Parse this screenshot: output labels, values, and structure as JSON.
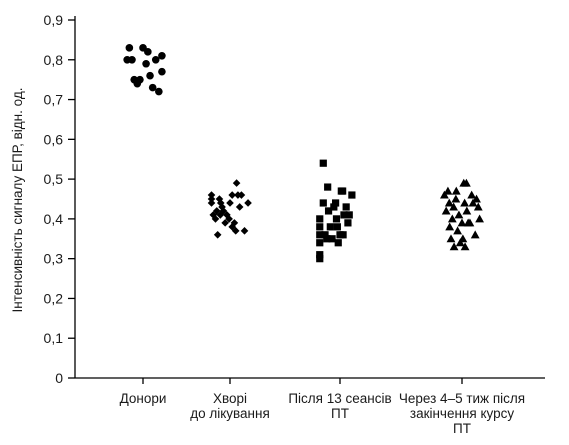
{
  "chart_data": {
    "type": "scatter",
    "ylabel": "Інтенсивність сигналу ЕПР, відн. од.",
    "ylim": [
      0,
      0.9
    ],
    "yticks": [
      "0",
      "0,1",
      "0,2",
      "0,3",
      "0,4",
      "0,5",
      "0,6",
      "0,7",
      "0,8",
      "0,9"
    ],
    "categories": [
      {
        "lines": [
          "Донори"
        ]
      },
      {
        "lines": [
          "Хворі",
          "до лікування"
        ]
      },
      {
        "lines": [
          "Після 13 сеансів",
          "ПТ"
        ]
      },
      {
        "lines": [
          "Через 4–5 тиж після",
          "закінчення курсу",
          "ПТ"
        ]
      }
    ],
    "series": [
      {
        "marker": "circle",
        "category": 0,
        "points": [
          [
            -0.36,
            0.8
          ],
          [
            -0.25,
            0.8
          ],
          [
            -0.31,
            0.83
          ],
          [
            -0.2,
            0.75
          ],
          [
            -0.13,
            0.74
          ],
          [
            -0.07,
            0.75
          ],
          [
            0.0,
            0.83
          ],
          [
            0.07,
            0.79
          ],
          [
            0.11,
            0.82
          ],
          [
            0.16,
            0.76
          ],
          [
            0.22,
            0.73
          ],
          [
            0.29,
            0.8
          ],
          [
            0.36,
            0.72
          ],
          [
            0.43,
            0.81
          ],
          [
            0.43,
            0.77
          ]
        ]
      },
      {
        "marker": "diamond",
        "category": 1,
        "points": [
          [
            -0.42,
            0.46
          ],
          [
            -0.42,
            0.45
          ],
          [
            -0.42,
            0.44
          ],
          [
            -0.38,
            0.41
          ],
          [
            -0.33,
            0.4
          ],
          [
            -0.3,
            0.42
          ],
          [
            -0.28,
            0.36
          ],
          [
            -0.24,
            0.45
          ],
          [
            -0.21,
            0.44
          ],
          [
            -0.22,
            0.41
          ],
          [
            -0.18,
            0.43
          ],
          [
            -0.15,
            0.42
          ],
          [
            -0.11,
            0.39
          ],
          [
            -0.07,
            0.41
          ],
          [
            -0.02,
            0.4
          ],
          [
            0.0,
            0.44
          ],
          [
            0.05,
            0.38
          ],
          [
            0.05,
            0.46
          ],
          [
            0.1,
            0.39
          ],
          [
            0.13,
            0.37
          ],
          [
            0.15,
            0.49
          ],
          [
            0.18,
            0.46
          ],
          [
            0.22,
            0.43
          ],
          [
            0.26,
            0.46
          ],
          [
            0.33,
            0.37
          ],
          [
            0.41,
            0.44
          ]
        ]
      },
      {
        "marker": "square",
        "category": 2,
        "points": [
          [
            -0.46,
            0.4
          ],
          [
            -0.46,
            0.38
          ],
          [
            -0.46,
            0.36
          ],
          [
            -0.46,
            0.34
          ],
          [
            -0.46,
            0.31
          ],
          [
            -0.46,
            0.3
          ],
          [
            -0.38,
            0.54
          ],
          [
            -0.38,
            0.44
          ],
          [
            -0.34,
            0.36
          ],
          [
            -0.3,
            0.35
          ],
          [
            -0.28,
            0.48
          ],
          [
            -0.26,
            0.42
          ],
          [
            -0.22,
            0.38
          ],
          [
            -0.18,
            0.35
          ],
          [
            -0.14,
            0.43
          ],
          [
            -0.1,
            0.44
          ],
          [
            -0.08,
            0.4
          ],
          [
            -0.06,
            0.38
          ],
          [
            -0.04,
            0.34
          ],
          [
            0.0,
            0.36
          ],
          [
            0.03,
            0.47
          ],
          [
            0.06,
            0.47
          ],
          [
            0.07,
            0.36
          ],
          [
            0.09,
            0.41
          ],
          [
            0.14,
            0.43
          ],
          [
            0.18,
            0.39
          ],
          [
            0.21,
            0.41
          ],
          [
            0.27,
            0.46
          ]
        ]
      },
      {
        "marker": "triangle",
        "category": 3,
        "points": [
          [
            -0.4,
            0.46
          ],
          [
            -0.36,
            0.42
          ],
          [
            -0.32,
            0.47
          ],
          [
            -0.29,
            0.44
          ],
          [
            -0.28,
            0.38
          ],
          [
            -0.25,
            0.35
          ],
          [
            -0.22,
            0.4
          ],
          [
            -0.19,
            0.43
          ],
          [
            -0.18,
            0.33
          ],
          [
            -0.14,
            0.45
          ],
          [
            -0.13,
            0.47
          ],
          [
            -0.1,
            0.37
          ],
          [
            -0.07,
            0.41
          ],
          [
            -0.04,
            0.34
          ],
          [
            0.0,
            0.39
          ],
          [
            0.02,
            0.35
          ],
          [
            0.04,
            0.49
          ],
          [
            0.06,
            0.44
          ],
          [
            0.07,
            0.33
          ],
          [
            0.1,
            0.49
          ],
          [
            0.11,
            0.42
          ],
          [
            0.14,
            0.39
          ],
          [
            0.18,
            0.39
          ],
          [
            0.22,
            0.46
          ],
          [
            0.25,
            0.44
          ],
          [
            0.3,
            0.36
          ],
          [
            0.33,
            0.45
          ],
          [
            0.37,
            0.43
          ],
          [
            0.4,
            0.4
          ]
        ]
      }
    ]
  }
}
